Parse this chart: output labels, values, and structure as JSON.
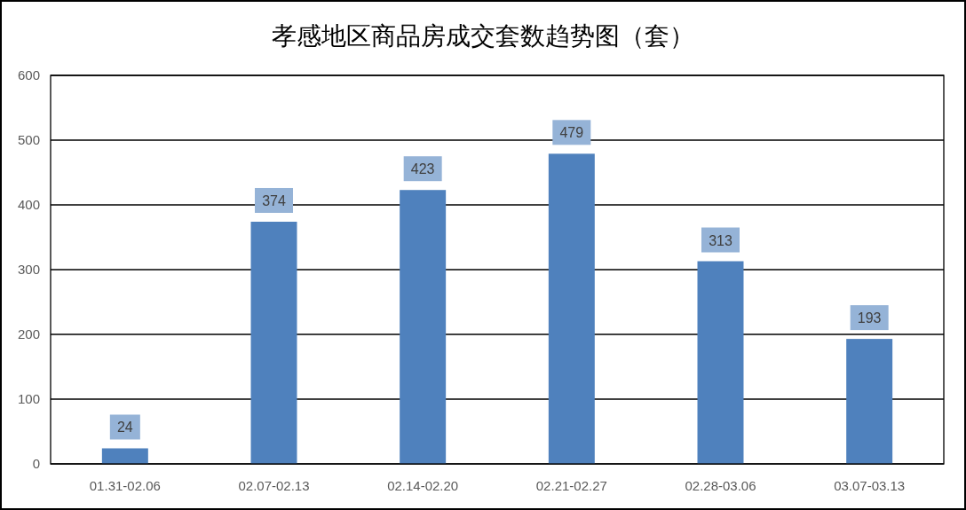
{
  "chart_data": {
    "type": "bar",
    "title": "孝感地区商品房成交套数趋势图（套）",
    "categories": [
      "01.31-02.06",
      "02.07-02.13",
      "02.14-02.20",
      "02.21-02.27",
      "02.28-03.06",
      "03.07-03.13"
    ],
    "values": [
      24,
      374,
      423,
      479,
      313,
      193
    ],
    "color": "#4f81bd",
    "ylim": [
      0,
      600
    ],
    "yticks": [
      0,
      100,
      200,
      300,
      400,
      500,
      600
    ],
    "grid": "y",
    "data_labels": true
  }
}
